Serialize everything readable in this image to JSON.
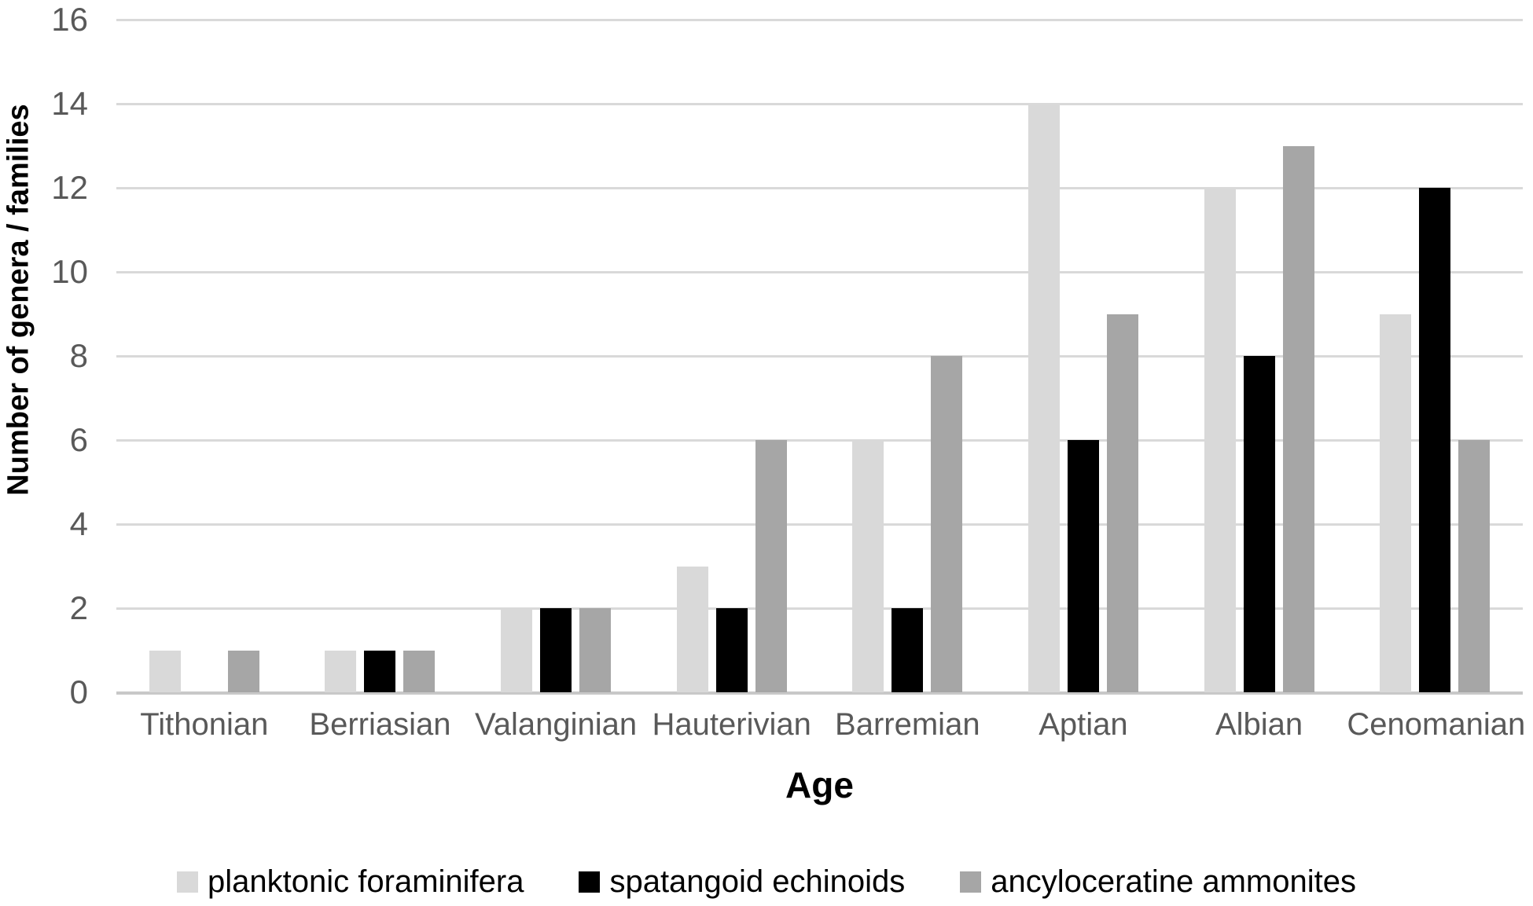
{
  "colors": {
    "background": "#ffffff",
    "grid": "#d9d9d9",
    "axis_line": "#c8c8c8",
    "tick_text": "#595959",
    "title_text": "#000000",
    "legend_text": "#000000"
  },
  "chart_data": {
    "type": "bar",
    "title": "",
    "xlabel": "Age",
    "ylabel": "Number of genera / families",
    "categories": [
      "Tithonian",
      "Berriasian",
      "Valanginian",
      "Hauterivian",
      "Barremian",
      "Aptian",
      "Albian",
      "Cenomanian"
    ],
    "series": [
      {
        "name": "planktonic foraminifera",
        "color": "#d9d9d9",
        "values": [
          1,
          1,
          2,
          3,
          6,
          14,
          12,
          9
        ]
      },
      {
        "name": "spatangoid echinoids",
        "color": "#000000",
        "values": [
          0,
          1,
          2,
          2,
          2,
          6,
          8,
          12
        ]
      },
      {
        "name": "ancyloceratine ammonites",
        "color": "#a6a6a6",
        "values": [
          1,
          1,
          2,
          6,
          8,
          9,
          13,
          6
        ]
      }
    ],
    "ylim": [
      0,
      16
    ],
    "yticks": [
      0,
      2,
      4,
      6,
      8,
      10,
      12,
      14,
      16
    ],
    "grid": "horizontal",
    "legend_position": "bottom"
  }
}
